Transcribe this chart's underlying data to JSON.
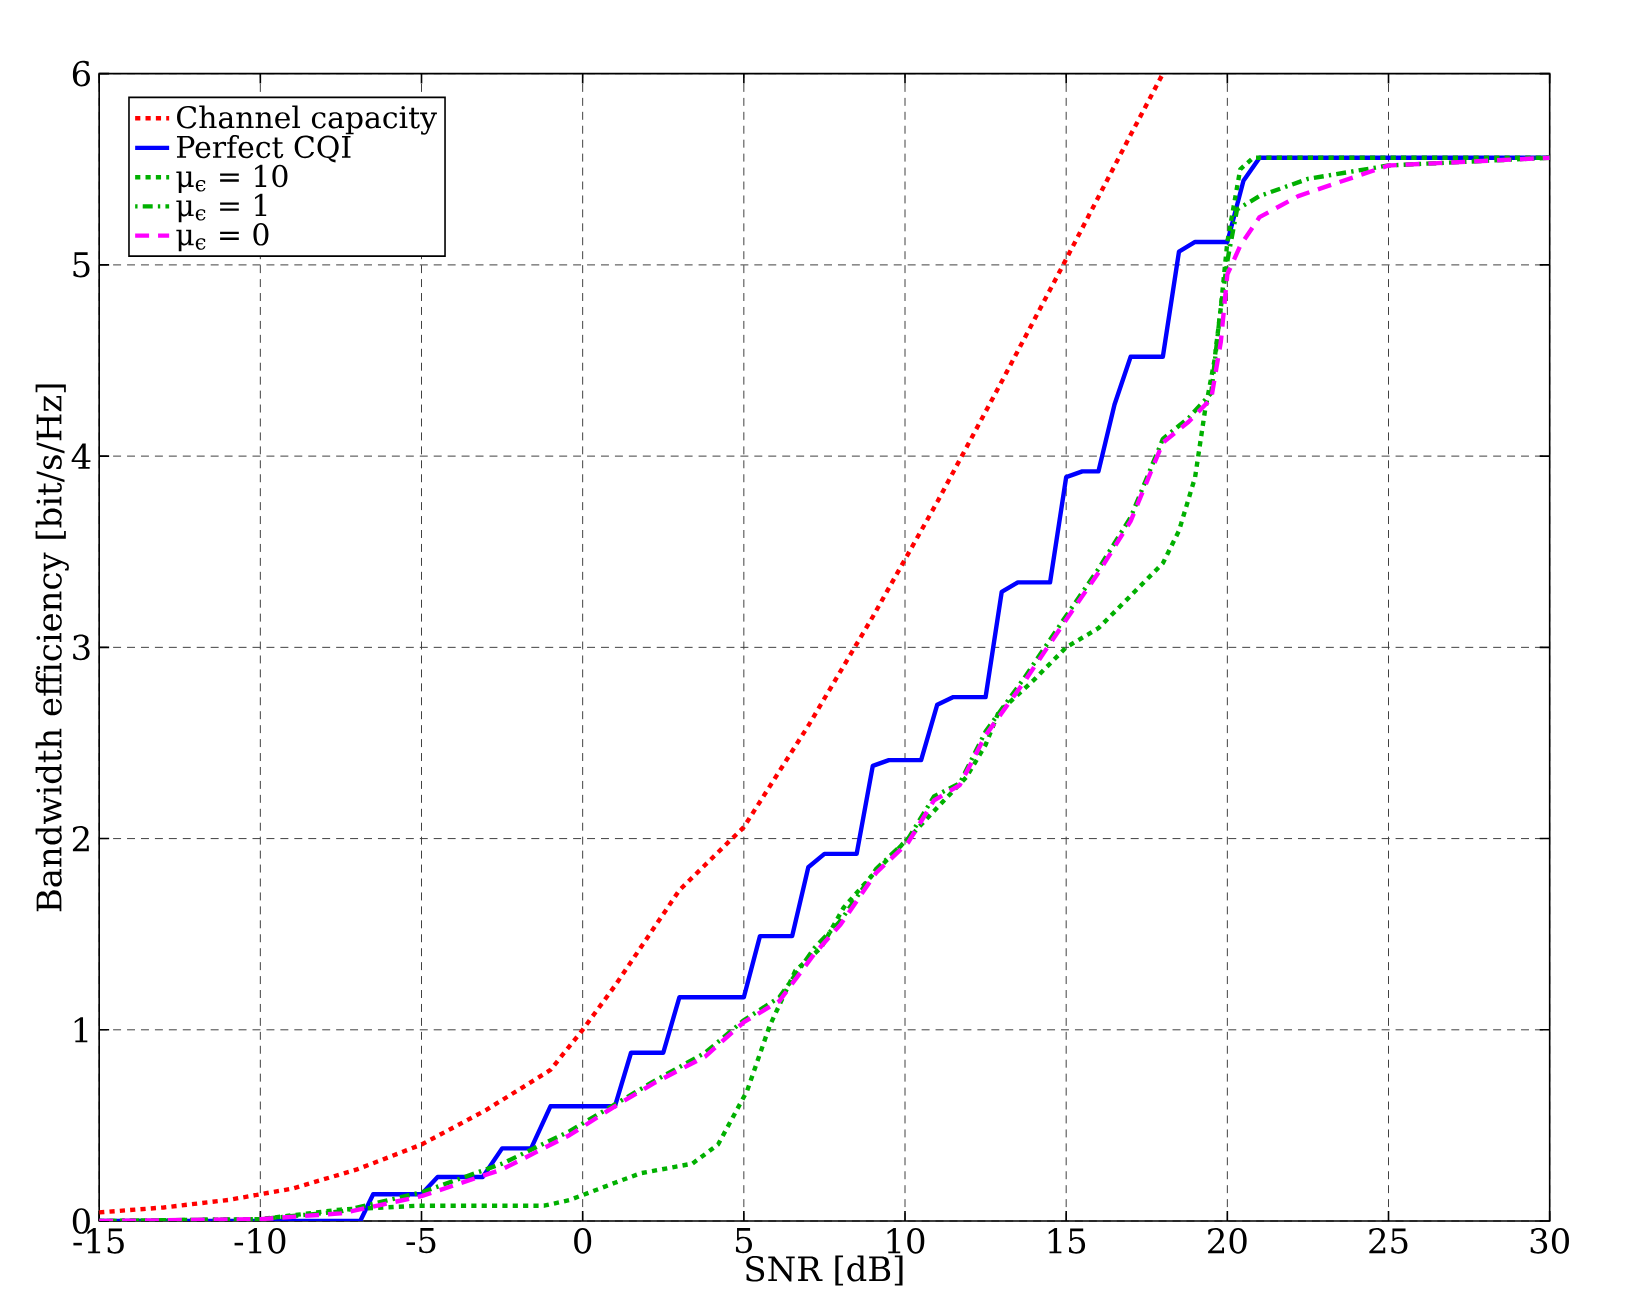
{
  "chart_data": {
    "type": "line",
    "xlabel": "SNR [dB]",
    "ylabel": "Bandwidth efficiency [bit/s/Hz]",
    "xlim": [
      -15,
      30
    ],
    "ylim": [
      0,
      6
    ],
    "xticks": [
      -15,
      -10,
      -5,
      0,
      5,
      10,
      15,
      20,
      25,
      30
    ],
    "yticks": [
      0,
      1,
      2,
      3,
      4,
      5,
      6
    ],
    "grid": true,
    "legend": "top left",
    "marker": "none",
    "series": [
      {
        "name": "Channel capacity",
        "color": "#ff0000",
        "line_style": "dotted",
        "x": [
          -15,
          -13,
          -11,
          -9,
          -7,
          -5,
          -3,
          -1,
          0,
          1,
          3,
          5,
          7,
          9,
          11,
          13,
          15,
          17,
          18
        ],
        "values": [
          0.045,
          0.071,
          0.11,
          0.17,
          0.27,
          0.4,
          0.58,
          0.79,
          1.0,
          1.23,
          1.73,
          2.06,
          2.59,
          3.16,
          3.76,
          4.39,
          5.03,
          5.68,
          6.0
        ]
      },
      {
        "name": "Perfect CQI",
        "color": "#0000ff",
        "line_style": "solid",
        "x": [
          -15,
          -6.9,
          -6.5,
          -5.0,
          -4.5,
          -3.1,
          -2.5,
          -1.6,
          -1.0,
          1.0,
          1.5,
          2.5,
          3.0,
          5.0,
          5.5,
          6.5,
          7.0,
          7.5,
          8.5,
          9.0,
          9.5,
          10.5,
          11.0,
          11.5,
          12.5,
          13.0,
          13.5,
          14.5,
          15.0,
          15.5,
          16.0,
          16.5,
          17.0,
          18.0,
          18.5,
          19.0,
          20.0,
          20.5,
          21.0,
          30
        ],
        "values": [
          0,
          0,
          0.14,
          0.14,
          0.23,
          0.23,
          0.38,
          0.38,
          0.6,
          0.6,
          0.88,
          0.88,
          1.17,
          1.17,
          1.49,
          1.49,
          1.85,
          1.92,
          1.92,
          2.38,
          2.41,
          2.41,
          2.7,
          2.74,
          2.74,
          3.29,
          3.34,
          3.34,
          3.89,
          3.92,
          3.92,
          4.27,
          4.52,
          4.52,
          5.07,
          5.12,
          5.12,
          5.44,
          5.56,
          5.56
        ]
      },
      {
        "name": "μ$_{ϵ}$ = 10",
        "color": "#00b000",
        "line_style": "dotted",
        "x": [
          -15,
          -10,
          -7.5,
          -5.1,
          -1.2,
          -0.4,
          1.0,
          1.8,
          3.4,
          4.2,
          5.1,
          5.8,
          6.6,
          7.4,
          8.1,
          9.1,
          10.1,
          11.1,
          11.9,
          12.5,
          12.9,
          14,
          15,
          16,
          17,
          18,
          18.5,
          19,
          19.3,
          19.6,
          19.8,
          20.0,
          20.4,
          20.8,
          30
        ],
        "values": [
          0,
          0.01,
          0.06,
          0.08,
          0.08,
          0.11,
          0.2,
          0.25,
          0.3,
          0.4,
          0.68,
          1.02,
          1.31,
          1.43,
          1.64,
          1.83,
          2.0,
          2.18,
          2.32,
          2.49,
          2.66,
          2.83,
          3.0,
          3.1,
          3.27,
          3.44,
          3.61,
          3.89,
          4.23,
          4.5,
          4.78,
          5.12,
          5.5,
          5.56,
          5.56
        ]
      },
      {
        "name": "μ$_{ϵ}$ = 1",
        "color": "#00b000",
        "line_style": "dashdot",
        "x": [
          -15,
          -10,
          -7.5,
          -5,
          -2.5,
          -0.4,
          1.0,
          2.2,
          3.8,
          5.0,
          6.1,
          7.2,
          8.0,
          9.1,
          10.1,
          10.9,
          11.7,
          12.5,
          13.7,
          14.9,
          16,
          17,
          18,
          18.8,
          19.5,
          19.8,
          20.0,
          20.3,
          21,
          22.5,
          25,
          30
        ],
        "values": [
          0,
          0.01,
          0.05,
          0.15,
          0.3,
          0.47,
          0.61,
          0.73,
          0.88,
          1.05,
          1.17,
          1.43,
          1.57,
          1.84,
          2.0,
          2.22,
          2.29,
          2.56,
          2.84,
          3.14,
          3.41,
          3.68,
          4.09,
          4.2,
          4.33,
          4.78,
          5.02,
          5.29,
          5.36,
          5.45,
          5.52,
          5.56
        ]
      },
      {
        "name": "μ$_{ϵ}$ = 0",
        "color": "#ff00ff",
        "line_style": "dashed",
        "x": [
          -15,
          -10,
          -7.5,
          -5,
          -2.5,
          -0.4,
          1.0,
          2.2,
          3.8,
          5.0,
          6.1,
          7.2,
          8.0,
          9.1,
          10.1,
          10.9,
          11.7,
          12.5,
          13.7,
          14.9,
          16,
          17,
          18,
          18.8,
          19.5,
          19.8,
          20.0,
          20.4,
          21,
          22.2,
          25,
          30
        ],
        "values": [
          0,
          0.01,
          0.04,
          0.13,
          0.27,
          0.45,
          0.6,
          0.72,
          0.86,
          1.04,
          1.15,
          1.4,
          1.55,
          1.82,
          1.98,
          2.2,
          2.28,
          2.54,
          2.82,
          3.12,
          3.39,
          3.66,
          4.07,
          4.18,
          4.3,
          4.6,
          4.95,
          5.1,
          5.25,
          5.36,
          5.52,
          5.56
        ]
      }
    ]
  }
}
